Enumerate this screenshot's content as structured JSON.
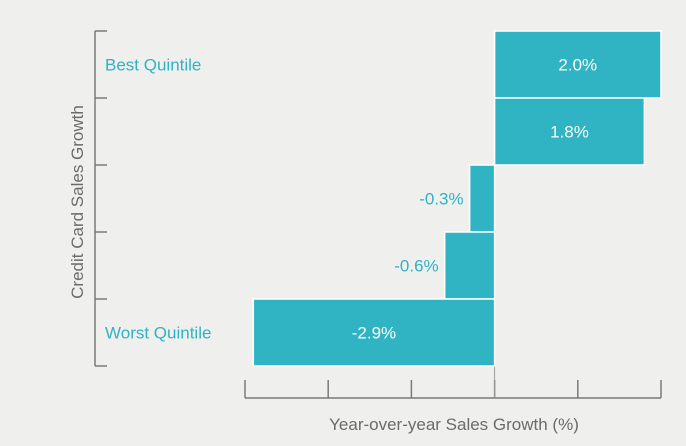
{
  "chart_data": {
    "type": "bar",
    "orientation": "horizontal",
    "categories": [
      "Best Quintile",
      "",
      "",
      "",
      "Worst Quintile"
    ],
    "values": [
      2.0,
      1.8,
      -0.3,
      -0.6,
      -2.9
    ],
    "data_labels": [
      "2.0%",
      "1.8%",
      "-0.3%",
      "-0.6%",
      "-2.9%"
    ],
    "category_labels": [
      {
        "index": 0,
        "text": "Best Quintile"
      },
      {
        "index": 4,
        "text": "Worst Quintile"
      }
    ],
    "xlabel": "Year-over-year Sales Growth (%)",
    "ylabel": "Credit Card Sales Growth",
    "xlim": [
      -3.0,
      2.0
    ],
    "x_tick_step": 1.0,
    "grid": false,
    "bar_color": "#30b3c2"
  }
}
